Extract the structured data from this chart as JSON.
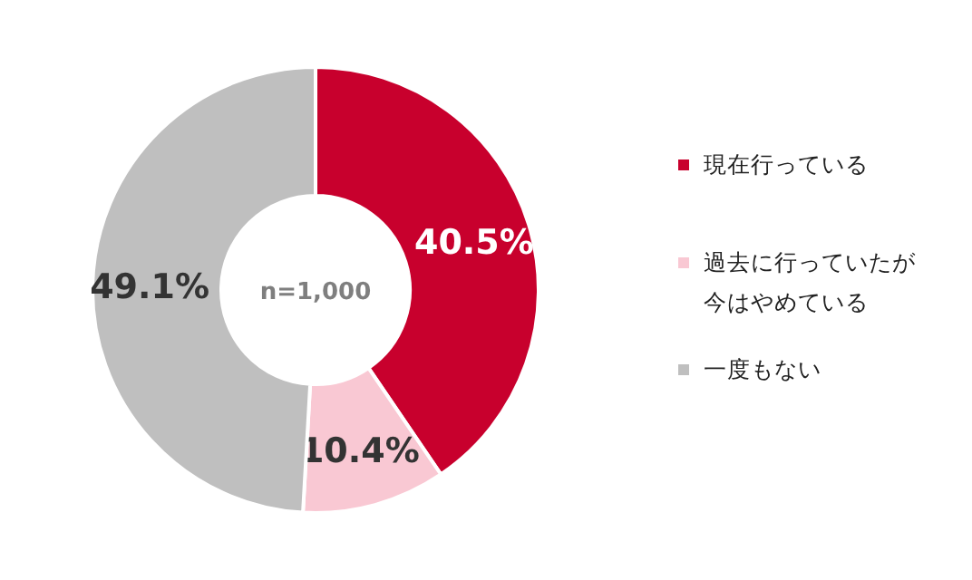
{
  "chart_data": {
    "type": "donut",
    "categories": [
      "現在行っている",
      "過去に行っていたが今はやめている",
      "一度もない"
    ],
    "values": [
      40.5,
      10.4,
      49.1
    ],
    "colors": [
      "#c8002d",
      "#f9c8d3",
      "#bfbfbf"
    ],
    "value_labels": [
      "40.5%",
      "10.4%",
      "49.1%"
    ],
    "annotations": [
      "n=1,000"
    ],
    "legend": "right"
  }
}
